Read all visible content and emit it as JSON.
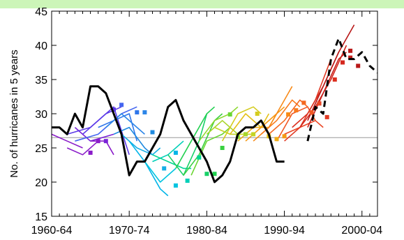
{
  "chart_data": {
    "type": "line",
    "title": "",
    "xlabel": "",
    "ylabel": "No. of hurricanes in 5 years",
    "xlim": [
      1960,
      2002
    ],
    "ylim": [
      15,
      45
    ],
    "x_tick_labels": [
      "1960-64",
      "1970-74",
      "1980-84",
      "1990-94",
      "2000-04"
    ],
    "x_tick_values": [
      1960,
      1970,
      1980,
      1990,
      2000
    ],
    "y_ticks": [
      15,
      20,
      25,
      30,
      35,
      40,
      45
    ],
    "reference_line": {
      "y": 26.5,
      "color": "#999999"
    },
    "observed": {
      "color": "#000000",
      "x": [
        1960,
        1961,
        1962,
        1963,
        1964,
        1965,
        1966,
        1967,
        1968,
        1969,
        1970,
        1971,
        1972,
        1973,
        1974,
        1975,
        1976,
        1977,
        1978,
        1979,
        1980,
        1981,
        1982,
        1983,
        1984,
        1985,
        1986,
        1987,
        1988,
        1989,
        1990
      ],
      "values": [
        28,
        28,
        27,
        30,
        28,
        34,
        34,
        33,
        30,
        27,
        21,
        23,
        23,
        25,
        27,
        31,
        32,
        29,
        27,
        25,
        23,
        20,
        21,
        23,
        27,
        28,
        28,
        29,
        27,
        23,
        23
      ]
    },
    "observed_recent": {
      "color": "#000000",
      "style": "dashed",
      "x": [
        1993,
        1994,
        1995,
        1996,
        1997,
        1998,
        1999,
        2000,
        2001,
        2002
      ],
      "values": [
        26,
        31,
        30,
        38,
        41,
        38,
        38,
        39,
        37,
        36
      ]
    },
    "forecasts": [
      {
        "color": "#8a1cc9",
        "x": [
          1960,
          1962,
          1964
        ],
        "values": [
          27,
          26,
          25
        ]
      },
      {
        "color": "#8a1cc9",
        "x": [
          1962,
          1964,
          1966
        ],
        "values": [
          25,
          24,
          26
        ]
      },
      {
        "color": "#7a22d8",
        "x": [
          1963,
          1965,
          1968
        ],
        "values": [
          28,
          26,
          27
        ]
      },
      {
        "color": "#8a1cc9",
        "x": [
          1965,
          1967,
          1968
        ],
        "values": [
          26,
          26,
          24
        ]
      },
      {
        "color": "#5c3ae8",
        "x": [
          1962,
          1965,
          1967,
          1969
        ],
        "values": [
          27,
          28,
          30,
          31
        ]
      },
      {
        "color": "#5c3ae8",
        "x": [
          1964,
          1966,
          1968,
          1970
        ],
        "values": [
          27,
          29,
          31,
          24
        ]
      },
      {
        "color": "#4466f0",
        "x": [
          1963,
          1966,
          1969,
          1971
        ],
        "values": [
          26,
          27,
          30,
          31
        ]
      },
      {
        "color": "#2f76ea",
        "x": [
          1966,
          1968,
          1970,
          1971
        ],
        "values": [
          28,
          29,
          30,
          26
        ]
      },
      {
        "color": "#2d86e8",
        "x": [
          1967,
          1969,
          1971,
          1972
        ],
        "values": [
          28,
          30,
          28,
          27
        ]
      },
      {
        "color": "#1f8ae0",
        "x": [
          1968,
          1970,
          1972,
          1973
        ],
        "values": [
          27,
          28,
          25,
          24
        ]
      },
      {
        "color": "#14aee6",
        "x": [
          1969,
          1971,
          1973,
          1974
        ],
        "values": [
          27,
          25,
          24,
          25
        ]
      },
      {
        "color": "#00b4e8",
        "x": [
          1970,
          1972,
          1974,
          1975
        ],
        "values": [
          26,
          23,
          19,
          18
        ]
      },
      {
        "color": "#00c4e0",
        "x": [
          1972,
          1974,
          1976
        ],
        "values": [
          23,
          20,
          22
        ]
      },
      {
        "color": "#00cfb8",
        "x": [
          1973,
          1975,
          1977
        ],
        "values": [
          23,
          24,
          26
        ]
      },
      {
        "color": "#00d494",
        "x": [
          1973,
          1975,
          1977,
          1978
        ],
        "values": [
          24,
          23,
          22,
          22
        ]
      },
      {
        "color": "#18d068",
        "x": [
          1975,
          1977,
          1979,
          1980
        ],
        "values": [
          24,
          21,
          26,
          30
        ]
      },
      {
        "color": "#22d050",
        "x": [
          1976,
          1978,
          1980,
          1981
        ],
        "values": [
          22,
          26,
          30,
          31
        ]
      },
      {
        "color": "#3ad040",
        "x": [
          1977,
          1979,
          1981,
          1982
        ],
        "values": [
          21,
          24,
          29,
          30
        ]
      },
      {
        "color": "#6ad632",
        "x": [
          1978,
          1980,
          1982,
          1983
        ],
        "values": [
          21,
          26,
          27,
          28
        ]
      },
      {
        "color": "#8ed830",
        "x": [
          1979,
          1981,
          1983,
          1984
        ],
        "values": [
          26,
          29,
          30,
          31
        ]
      },
      {
        "color": "#a8d62a",
        "x": [
          1980,
          1982,
          1984,
          1985
        ],
        "values": [
          27,
          29,
          27,
          28
        ]
      },
      {
        "color": "#c4d424",
        "x": [
          1981,
          1983,
          1985,
          1986
        ],
        "values": [
          28,
          27,
          27,
          27
        ]
      },
      {
        "color": "#d4cc20",
        "x": [
          1982,
          1984,
          1986,
          1987
        ],
        "values": [
          26,
          30,
          31,
          30
        ]
      },
      {
        "color": "#e4c018",
        "x": [
          1983,
          1985,
          1987,
          1988
        ],
        "values": [
          27,
          30,
          28,
          30
        ]
      },
      {
        "color": "#f0ac14",
        "x": [
          1984,
          1986,
          1988,
          1989
        ],
        "values": [
          26,
          28,
          28,
          30
        ]
      },
      {
        "color": "#f69a14",
        "x": [
          1985,
          1987,
          1989,
          1990
        ],
        "values": [
          26,
          28,
          30,
          31
        ]
      },
      {
        "color": "#f88a18",
        "x": [
          1986,
          1988,
          1990,
          1991
        ],
        "values": [
          26,
          28,
          32,
          34
        ]
      },
      {
        "color": "#f87a1c",
        "x": [
          1987,
          1989,
          1991,
          1992
        ],
        "values": [
          27,
          29,
          32,
          31
        ]
      },
      {
        "color": "#f46820",
        "x": [
          1988,
          1990,
          1992,
          1993
        ],
        "values": [
          27,
          29,
          32,
          31
        ]
      },
      {
        "color": "#f05824",
        "x": [
          1989,
          1991,
          1993,
          1994
        ],
        "values": [
          26,
          30,
          31,
          29
        ]
      },
      {
        "color": "#ea4624",
        "x": [
          1990,
          1992,
          1994,
          1995
        ],
        "values": [
          27,
          28,
          29,
          28
        ]
      },
      {
        "color": "#e23a24",
        "x": [
          1990,
          1992,
          1994,
          1996
        ],
        "values": [
          26,
          28,
          32,
          38
        ]
      },
      {
        "color": "#dc3020",
        "x": [
          1991,
          1993,
          1995,
          1997
        ],
        "values": [
          28,
          30,
          34,
          39
        ]
      },
      {
        "color": "#d4281e",
        "x": [
          1992,
          1994,
          1996,
          1998
        ],
        "values": [
          28,
          31,
          35,
          40
        ]
      },
      {
        "color": "#c8201c",
        "x": [
          1993,
          1995,
          1997,
          1998
        ],
        "values": [
          28,
          33,
          38,
          39
        ]
      },
      {
        "color": "#b81818",
        "x": [
          1993,
          1995,
          1997,
          1999
        ],
        "values": [
          29,
          34,
          39,
          43
        ]
      }
    ],
    "initial_points": [
      {
        "x": 1965,
        "y": 24.3,
        "color": "#8a1cc9"
      },
      {
        "x": 1966,
        "y": 26.0,
        "color": "#8a1cc9"
      },
      {
        "x": 1967,
        "y": 26.0,
        "color": "#7a22d8"
      },
      {
        "x": 1968,
        "y": 30.6,
        "color": "#5c3ae8"
      },
      {
        "x": 1969,
        "y": 31.3,
        "color": "#4466f0"
      },
      {
        "x": 1971,
        "y": 30.2,
        "color": "#2f76ea"
      },
      {
        "x": 1972,
        "y": 30.2,
        "color": "#2d86e8"
      },
      {
        "x": 1973,
        "y": 27.3,
        "color": "#1f8ae0"
      },
      {
        "x": 1974.5,
        "y": 22.0,
        "color": "#14aee6"
      },
      {
        "x": 1976,
        "y": 24.3,
        "color": "#00b4e8"
      },
      {
        "x": 1976,
        "y": 19.5,
        "color": "#00c4e0"
      },
      {
        "x": 1977.5,
        "y": 20.2,
        "color": "#00cfb8"
      },
      {
        "x": 1979,
        "y": 23.6,
        "color": "#00d494"
      },
      {
        "x": 1980,
        "y": 21.2,
        "color": "#18d068"
      },
      {
        "x": 1981,
        "y": 21.2,
        "color": "#22d050"
      },
      {
        "x": 1982,
        "y": 25.0,
        "color": "#3ad040"
      },
      {
        "x": 1983,
        "y": 29.9,
        "color": "#6ad632"
      },
      {
        "x": 1984,
        "y": 26.6,
        "color": "#8ed830"
      },
      {
        "x": 1985,
        "y": 27.0,
        "color": "#a8d62a"
      },
      {
        "x": 1986,
        "y": 27.0,
        "color": "#c4d424"
      },
      {
        "x": 1986.5,
        "y": 30.0,
        "color": "#d4cc20"
      },
      {
        "x": 1988,
        "y": 26.7,
        "color": "#e4c018"
      },
      {
        "x": 1989,
        "y": 26.3,
        "color": "#f0ac14"
      },
      {
        "x": 1990,
        "y": 26.7,
        "color": "#f69a14"
      },
      {
        "x": 1990.5,
        "y": 29.9,
        "color": "#f88a18"
      },
      {
        "x": 1991.5,
        "y": 30.5,
        "color": "#f87a1c"
      },
      {
        "x": 1992.5,
        "y": 31.6,
        "color": "#f46820"
      },
      {
        "x": 1993.5,
        "y": 30.2,
        "color": "#f05824"
      },
      {
        "x": 1994.5,
        "y": 31.5,
        "color": "#ea4624"
      },
      {
        "x": 1995.5,
        "y": 29.5,
        "color": "#e23a24"
      },
      {
        "x": 1996.5,
        "y": 35.0,
        "color": "#dc3020"
      },
      {
        "x": 1997.5,
        "y": 37.5,
        "color": "#d4281e"
      },
      {
        "x": 1998.5,
        "y": 38.2,
        "color": "#c8201c"
      },
      {
        "x": 1999.5,
        "y": 37.0,
        "color": "#b81818"
      },
      {
        "x": 1998.5,
        "y": 39.2,
        "color": "#b81818"
      }
    ]
  }
}
